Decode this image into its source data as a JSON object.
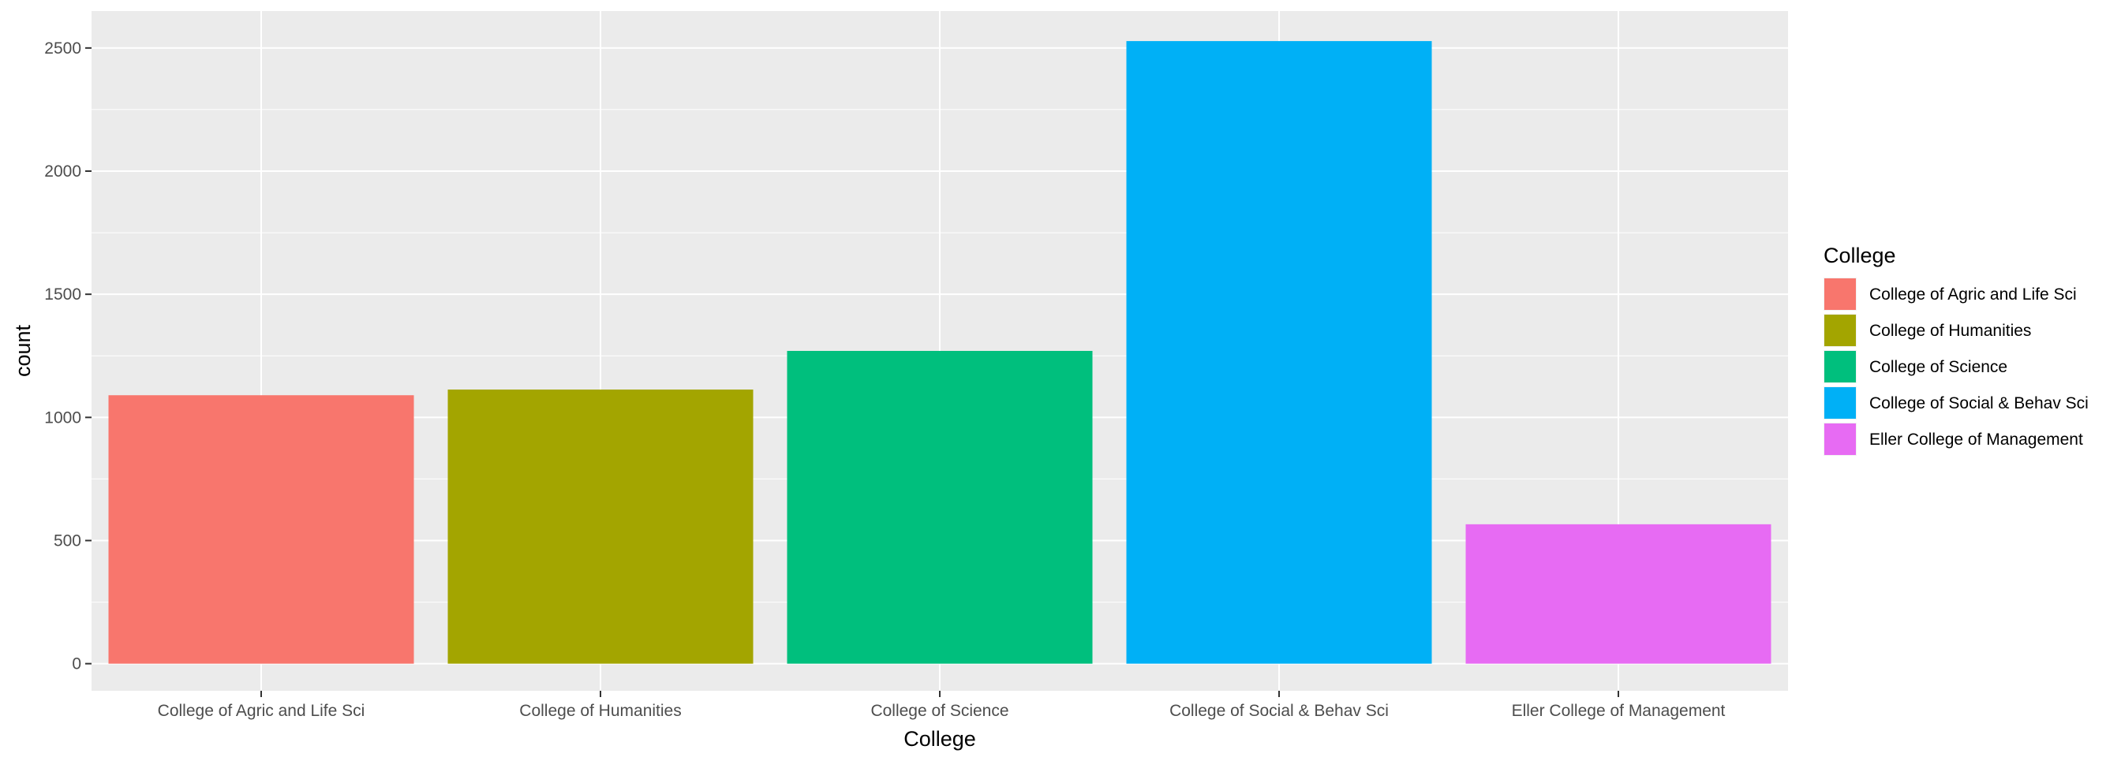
{
  "chart_data": {
    "type": "bar",
    "title": "",
    "xlabel": "College",
    "ylabel": "count",
    "categories": [
      "College of Agric and Life Sci",
      "College of Humanities",
      "College of Science",
      "College of Social & Behav Sci",
      "Eller College of Management"
    ],
    "values": [
      1090,
      1113,
      1270,
      2528,
      566
    ],
    "colors": [
      "#F8766D",
      "#A3A500",
      "#00BF7D",
      "#00B0F6",
      "#E76BF3"
    ],
    "ylim": [
      -110,
      2650
    ],
    "yticks": [
      0,
      500,
      1000,
      1500,
      2000,
      2500
    ],
    "grid": true,
    "panel_background": "#EBEBEB",
    "legend": {
      "title": "College",
      "position": "right",
      "entries": [
        "College of Agric and Life Sci",
        "College of Humanities",
        "College of Science",
        "College of Social & Behav Sci",
        "Eller College of Management"
      ]
    }
  }
}
